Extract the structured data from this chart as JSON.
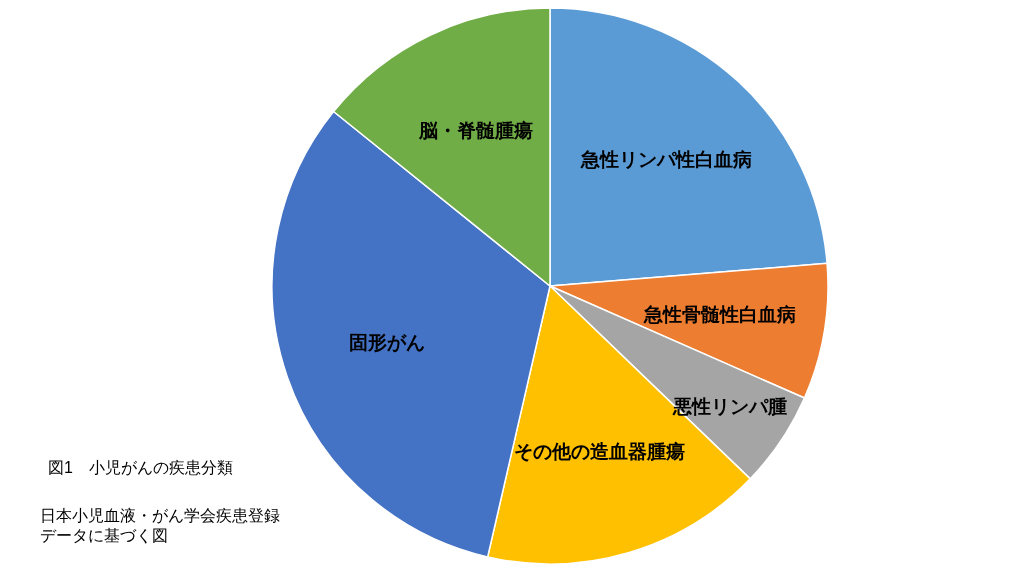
{
  "chart_data": {
    "type": "pie",
    "categories": [
      "急性リンパ性白血病",
      "急性骨髄性白血病",
      "悪性リンパ腫",
      "その他の造血器腫瘍",
      "固形がん",
      "脳・脊髄腫瘍"
    ],
    "values": [
      23.7,
      7.9,
      5.6,
      16.4,
      32.2,
      14.2
    ],
    "colors": [
      "#5b9bd5",
      "#ed7d31",
      "#a5a5a5",
      "#ffc000",
      "#4472c4",
      "#70ad47"
    ],
    "annotations": [
      "図1　小児がんの疾患分類",
      "日本小児血液・がん学会疾患登録データに基づく図"
    ]
  }
}
